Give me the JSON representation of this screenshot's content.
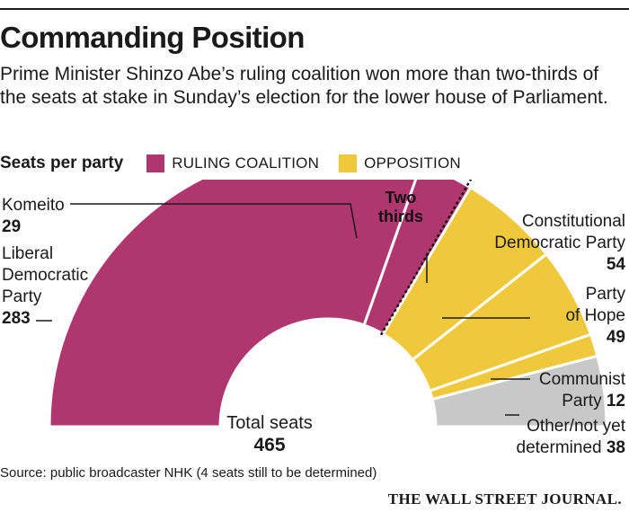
{
  "header": {
    "title": "Commanding Position",
    "subtitle": "Prime Minister Shinzo Abe’s ruling coalition won more than two-thirds of the seats at stake in Sunday’s election for the lower house of Parliament."
  },
  "legend": {
    "title": "Seats per party",
    "items": [
      {
        "label": "RULING COALITION",
        "color": "#b0366f"
      },
      {
        "label": "OPPOSITION",
        "color": "#f0c83c"
      }
    ]
  },
  "chart_data": {
    "type": "pie",
    "variant": "half-donut",
    "total": 465,
    "center_label": "Total seats",
    "center_value": "465",
    "annotation": "Two thirds",
    "annotation_fraction": 0.6667,
    "slices": [
      {
        "name": "Liberal Democratic Party",
        "label_lines": [
          "Liberal",
          "Democratic",
          "Party"
        ],
        "value": 283,
        "group": "ruling",
        "color": "#b0366f"
      },
      {
        "name": "Komeito",
        "label_lines": [
          "Komeito"
        ],
        "value": 29,
        "group": "ruling",
        "color": "#b0366f"
      },
      {
        "name": "Constitutional Democratic Party",
        "label_lines": [
          "Constitutional",
          "Democratic Party"
        ],
        "value": 54,
        "group": "opposition",
        "color": "#f0c83c"
      },
      {
        "name": "Party of Hope",
        "label_lines": [
          "Party",
          "of Hope"
        ],
        "value": 49,
        "group": "opposition",
        "color": "#f0c83c"
      },
      {
        "name": "Communist Party",
        "label_lines": [
          "Communist",
          "Party"
        ],
        "value": 12,
        "group": "opposition",
        "color": "#f0c83c"
      },
      {
        "name": "Other/not yet determined",
        "label_lines": [
          "Other/not yet",
          "determined"
        ],
        "value": 38,
        "group": "other",
        "color": "#c8c8c8"
      }
    ]
  },
  "footer": {
    "source": "Source: public broadcaster NHK (4 seats still to be determined)",
    "masthead": "THE WALL STREET JOURNAL."
  }
}
